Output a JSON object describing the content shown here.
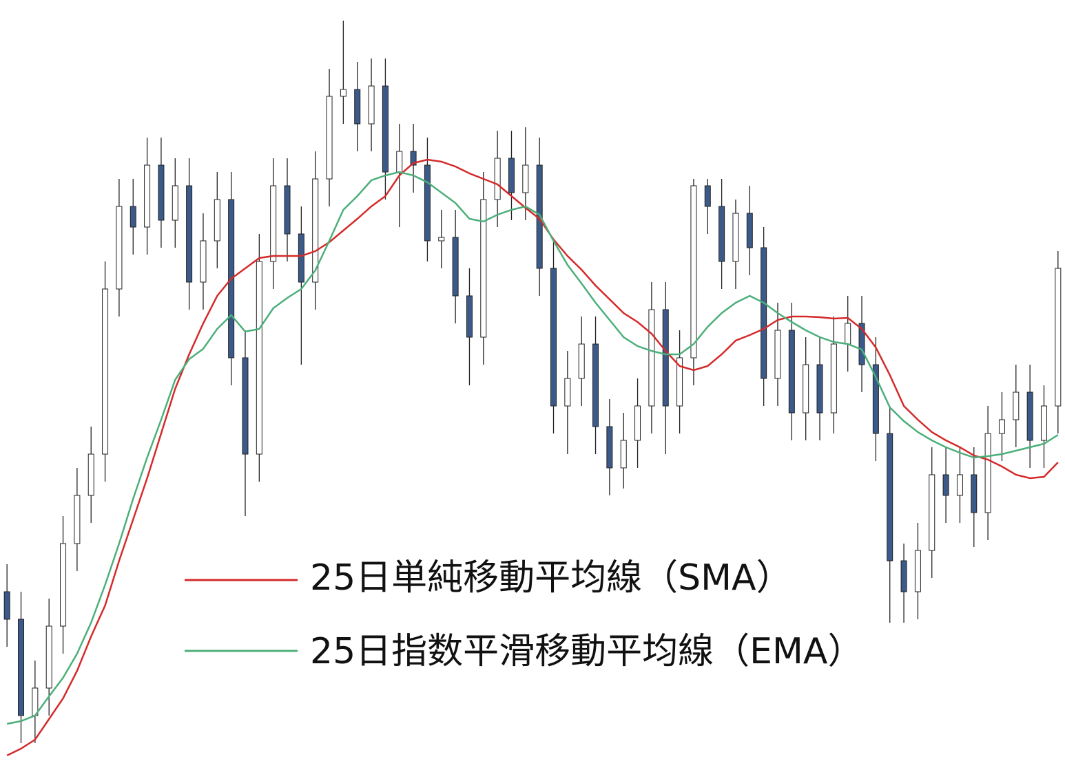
{
  "chart_data": {
    "type": "candlestick",
    "open": [
      262,
      222,
      82,
      122,
      212,
      332,
      402,
      462,
      702,
      822,
      792,
      882,
      802,
      852,
      712,
      772,
      832,
      602,
      462,
      742,
      852,
      782,
      712,
      862,
      982,
      992,
      942,
      997,
      872,
      902,
      882,
      772,
      777,
      692,
      632,
      832,
      892,
      842,
      882,
      732,
      532,
      572,
      622,
      502,
      442,
      482,
      532,
      672,
      532,
      602,
      852,
      822,
      742,
      812,
      762,
      572,
      642,
      522,
      592,
      522,
      622,
      652,
      592,
      492,
      307,
      262,
      322,
      432,
      402,
      432,
      377,
      492,
      512,
      552,
      482,
      532
    ],
    "high": [
      302,
      262,
      162,
      252,
      372,
      442,
      502,
      742,
      862,
      862,
      922,
      922,
      892,
      892,
      812,
      872,
      872,
      642,
      782,
      892,
      892,
      822,
      902,
      1022,
      1092,
      1032,
      1037,
      1037,
      942,
      942,
      922,
      817,
      817,
      732,
      872,
      932,
      932,
      937,
      922,
      772,
      612,
      662,
      662,
      542,
      522,
      572,
      712,
      712,
      642,
      862,
      862,
      862,
      832,
      852,
      792,
      682,
      682,
      632,
      632,
      662,
      692,
      692,
      632,
      532,
      332,
      362,
      472,
      472,
      472,
      472,
      532,
      552,
      592,
      592,
      562,
      757
    ],
    "low": [
      182,
      42,
      42,
      82,
      172,
      292,
      362,
      422,
      662,
      752,
      752,
      762,
      762,
      672,
      672,
      732,
      562,
      372,
      422,
      702,
      742,
      592,
      672,
      822,
      942,
      902,
      902,
      832,
      792,
      842,
      742,
      732,
      652,
      562,
      592,
      792,
      802,
      802,
      692,
      492,
      462,
      532,
      462,
      402,
      412,
      442,
      492,
      462,
      492,
      562,
      782,
      702,
      702,
      722,
      532,
      532,
      482,
      482,
      482,
      492,
      582,
      552,
      452,
      207,
      212,
      222,
      282,
      362,
      362,
      327,
      337,
      452,
      472,
      442,
      442,
      492
    ],
    "close": [
      222,
      82,
      122,
      212,
      332,
      402,
      462,
      702,
      822,
      792,
      882,
      802,
      852,
      712,
      772,
      832,
      602,
      462,
      742,
      852,
      782,
      712,
      862,
      982,
      992,
      942,
      997,
      872,
      902,
      882,
      772,
      777,
      692,
      632,
      832,
      892,
      842,
      882,
      732,
      532,
      572,
      622,
      502,
      442,
      482,
      532,
      672,
      532,
      602,
      852,
      822,
      742,
      812,
      762,
      572,
      642,
      522,
      592,
      522,
      622,
      652,
      592,
      492,
      307,
      262,
      322,
      432,
      402,
      432,
      377,
      492,
      512,
      552,
      482,
      532,
      732
    ],
    "up_color": "#ffffff",
    "down_color": "#3b5a8a",
    "ylim": [
      0,
      1122
    ],
    "series": [
      {
        "name": "25日単純移動平均線（SMA）",
        "color": "#d42a2a",
        "values": [
          24,
          34,
          47,
          77,
          107,
          147,
          197,
          242,
          307,
          367,
          427,
          492,
          557,
          607,
          652,
          692,
          717,
          732,
          747,
          750,
          750,
          750,
          757,
          770,
          787,
          804,
          822,
          837,
          867,
          885,
          890,
          887,
          880,
          870,
          862,
          854,
          837,
          820,
          804,
          774,
          750,
          730,
          707,
          687,
          667,
          654,
          637,
          612,
          590,
          584,
          590,
          607,
          627,
          635,
          644,
          657,
          662,
          662,
          661,
          659,
          660,
          644,
          617,
          577,
          532,
          512,
          494,
          482,
          472,
          460,
          454,
          444,
          432,
          427,
          429,
          450
        ]
      },
      {
        "name": "25日指数平滑移動平均線（EMA）",
        "color": "#4caf7a",
        "values": [
          70,
          74,
          82,
          110,
          137,
          172,
          217,
          272,
          332,
          397,
          457,
          512,
          570,
          600,
          615,
          644,
          664,
          640,
          644,
          674,
          689,
          702,
          729,
          772,
          817,
          837,
          860,
          867,
          872,
          867,
          857,
          842,
          827,
          804,
          800,
          810,
          817,
          822,
          810,
          772,
          737,
          710,
          682,
          657,
          632,
          619,
          612,
          607,
          607,
          622,
          647,
          667,
          682,
          692,
          682,
          667,
          654,
          642,
          632,
          625,
          622,
          614,
          574,
          530,
          510,
          494,
          482,
          472,
          464,
          457,
          459,
          462,
          467,
          472,
          477,
          490
        ]
      }
    ]
  }
}
